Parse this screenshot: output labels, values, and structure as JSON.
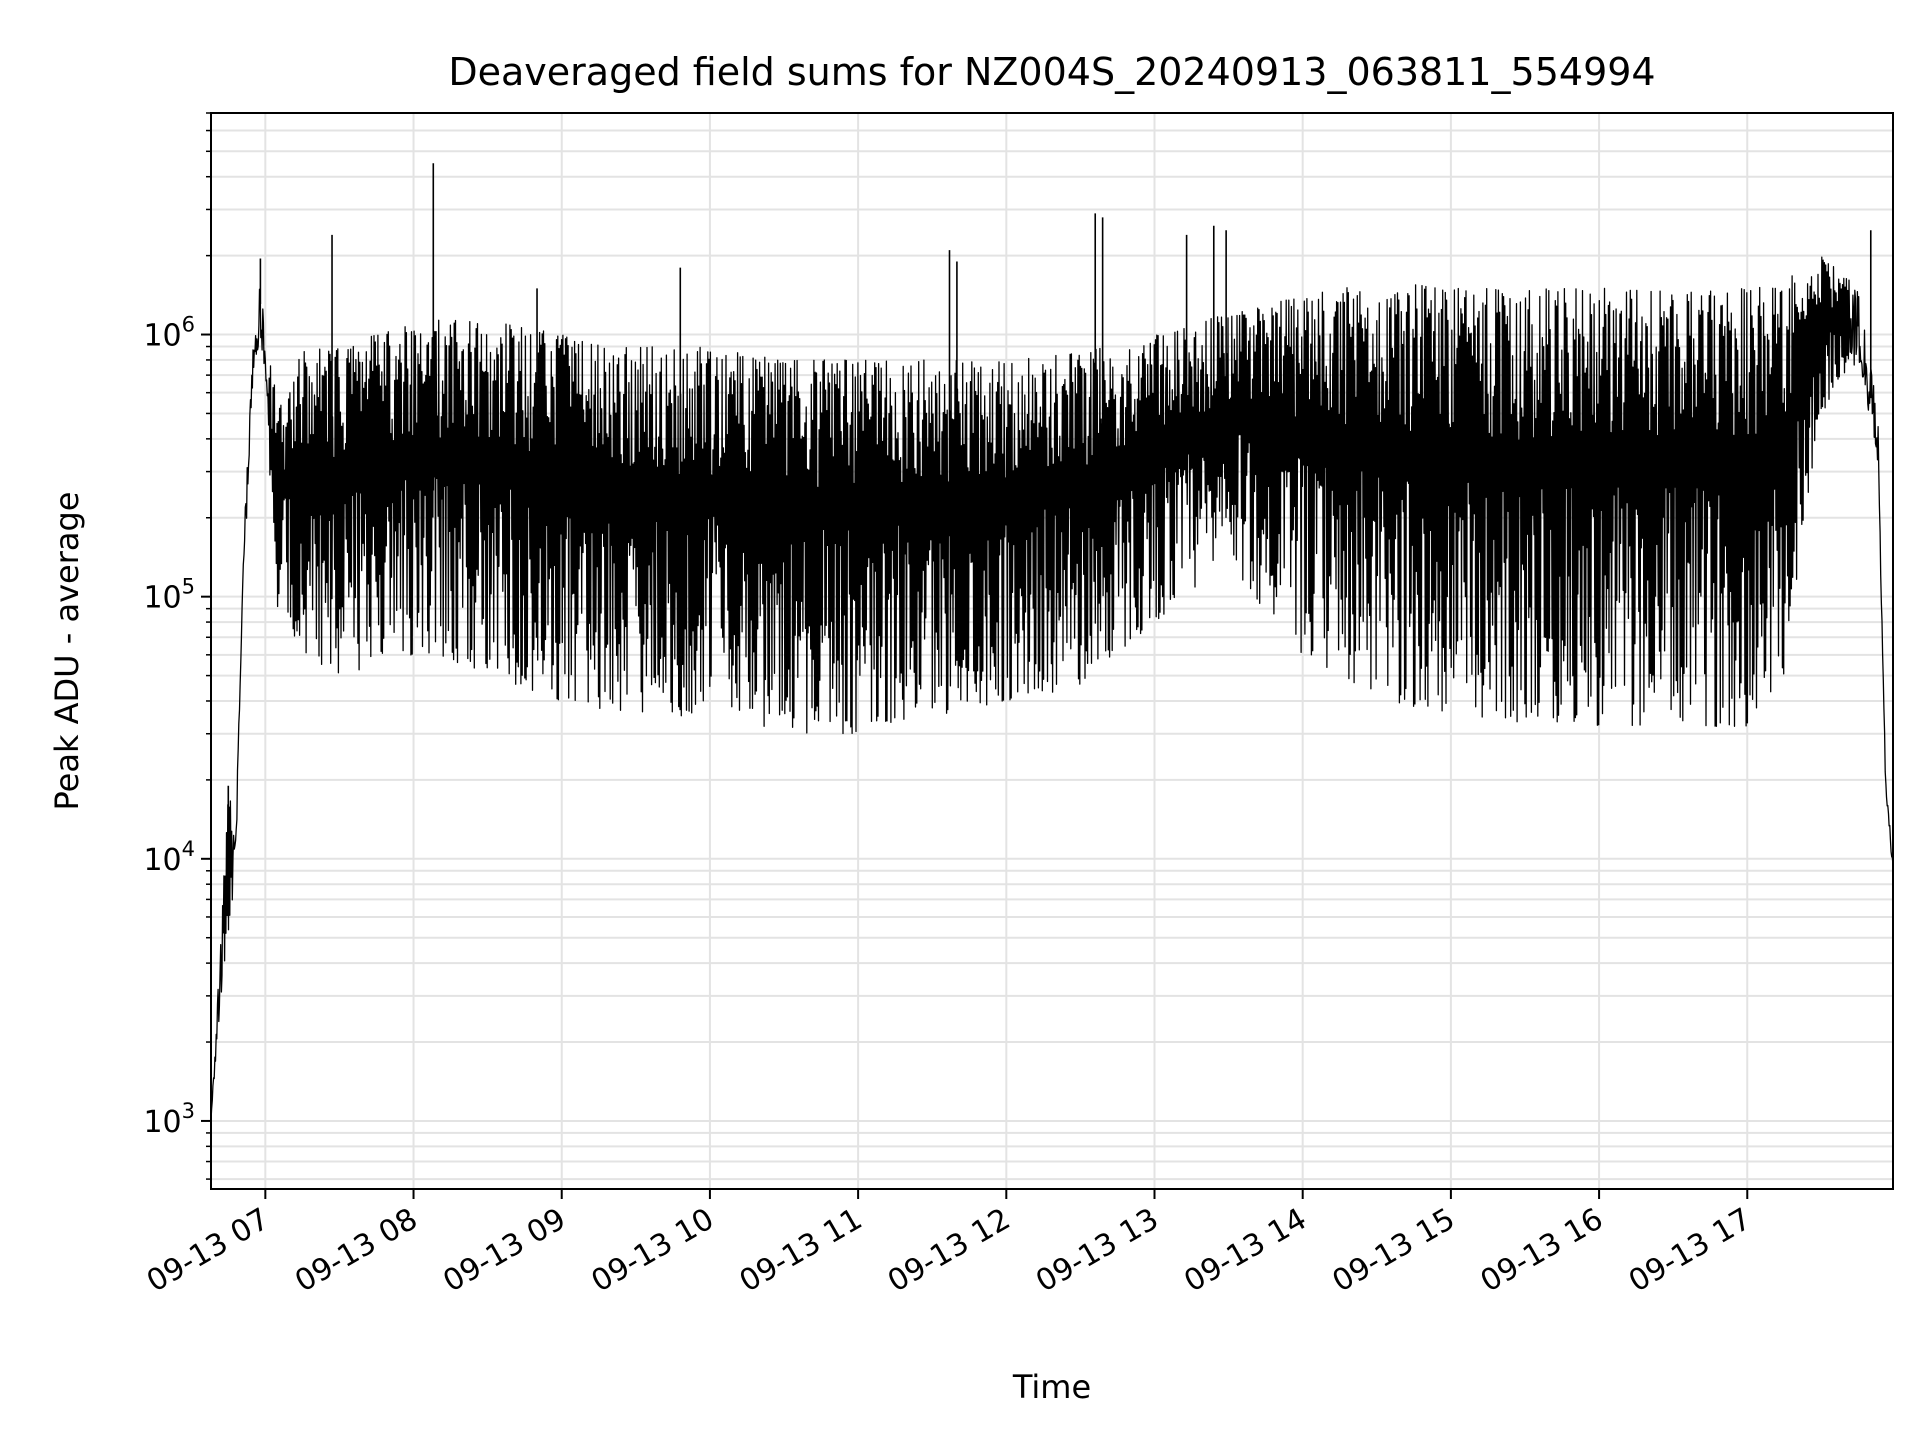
{
  "chart_data": {
    "type": "line",
    "title": "Deaveraged field sums for NZ004S_20240913_063811_554994",
    "xlabel": "Time",
    "ylabel": "Peak ADU - average",
    "yscale": "log",
    "ylim": [
      550,
      7000000
    ],
    "xlim": [
      "2024-09-13 06:38",
      "2024-09-13 17:59"
    ],
    "grid": true,
    "x_ticks": [
      {
        "label": "09-13 07",
        "value": "2024-09-13 07:00"
      },
      {
        "label": "09-13 08",
        "value": "2024-09-13 08:00"
      },
      {
        "label": "09-13 09",
        "value": "2024-09-13 09:00"
      },
      {
        "label": "09-13 10",
        "value": "2024-09-13 10:00"
      },
      {
        "label": "09-13 11",
        "value": "2024-09-13 11:00"
      },
      {
        "label": "09-13 12",
        "value": "2024-09-13 12:00"
      },
      {
        "label": "09-13 13",
        "value": "2024-09-13 13:00"
      },
      {
        "label": "09-13 14",
        "value": "2024-09-13 14:00"
      },
      {
        "label": "09-13 15",
        "value": "2024-09-13 15:00"
      },
      {
        "label": "09-13 16",
        "value": "2024-09-13 16:00"
      },
      {
        "label": "09-13 17",
        "value": "2024-09-13 17:00"
      }
    ],
    "y_ticks": [
      {
        "base": "10",
        "exp": "3",
        "value": 1000
      },
      {
        "base": "10",
        "exp": "4",
        "value": 10000
      },
      {
        "base": "10",
        "exp": "5",
        "value": 100000
      },
      {
        "base": "10",
        "exp": "6",
        "value": 1000000
      }
    ],
    "series_color": "#000000",
    "envelope": [
      {
        "t": "06:38",
        "low": 1000,
        "high": 1000
      },
      {
        "t": "06:42",
        "low": 3000,
        "high": 5000
      },
      {
        "t": "06:45",
        "low": 5000,
        "high": 19000
      },
      {
        "t": "06:48",
        "low": 9000,
        "high": 12000
      },
      {
        "t": "06:51",
        "low": 100000,
        "high": 150000
      },
      {
        "t": "06:55",
        "low": 700000,
        "high": 900000
      },
      {
        "t": "06:58",
        "low": 900000,
        "high": 1900000
      },
      {
        "t": "07:00",
        "low": 650000,
        "high": 800000
      },
      {
        "t": "07:02",
        "low": 180000,
        "high": 780000
      },
      {
        "t": "07:05",
        "low": 80000,
        "high": 550000
      },
      {
        "t": "07:15",
        "low": 60000,
        "high": 900000
      },
      {
        "t": "07:30",
        "low": 50000,
        "high": 900000
      },
      {
        "t": "07:45",
        "low": 55000,
        "high": 1000000
      },
      {
        "t": "08:00",
        "low": 60000,
        "high": 1100000
      },
      {
        "t": "08:15",
        "low": 55000,
        "high": 1150000
      },
      {
        "t": "08:30",
        "low": 50000,
        "high": 1100000
      },
      {
        "t": "08:45",
        "low": 45000,
        "high": 1100000
      },
      {
        "t": "09:00",
        "low": 40000,
        "high": 1000000
      },
      {
        "t": "09:30",
        "low": 35000,
        "high": 900000
      },
      {
        "t": "10:00",
        "low": 35000,
        "high": 900000
      },
      {
        "t": "10:30",
        "low": 30000,
        "high": 800000
      },
      {
        "t": "11:00",
        "low": 30000,
        "high": 800000
      },
      {
        "t": "11:30",
        "low": 35000,
        "high": 800000
      },
      {
        "t": "12:00",
        "low": 40000,
        "high": 800000
      },
      {
        "t": "12:30",
        "low": 45000,
        "high": 850000
      },
      {
        "t": "13:00",
        "low": 80000,
        "high": 1000000
      },
      {
        "t": "13:30",
        "low": 130000,
        "high": 1200000
      },
      {
        "t": "14:00",
        "low": 60000,
        "high": 1400000
      },
      {
        "t": "14:30",
        "low": 40000,
        "high": 1600000
      },
      {
        "t": "15:00",
        "low": 35000,
        "high": 1500000
      },
      {
        "t": "15:30",
        "low": 33000,
        "high": 1500000
      },
      {
        "t": "16:00",
        "low": 32000,
        "high": 1500000
      },
      {
        "t": "16:30",
        "low": 32000,
        "high": 1500000
      },
      {
        "t": "17:00",
        "low": 32000,
        "high": 1500000
      },
      {
        "t": "17:15",
        "low": 50000,
        "high": 1600000
      },
      {
        "t": "17:30",
        "low": 500000,
        "high": 2000000
      },
      {
        "t": "17:45",
        "low": 800000,
        "high": 1500000
      },
      {
        "t": "17:53",
        "low": 300000,
        "high": 500000
      },
      {
        "t": "17:56",
        "low": 18000,
        "high": 20000
      },
      {
        "t": "17:59",
        "low": 8500,
        "high": 10000
      }
    ],
    "spikes": [
      {
        "t": "06:45",
        "value": 19000
      },
      {
        "t": "06:58",
        "value": 1950000
      },
      {
        "t": "07:27",
        "value": 2400000
      },
      {
        "t": "08:08",
        "value": 4500000
      },
      {
        "t": "08:50",
        "value": 1500000
      },
      {
        "t": "09:48",
        "value": 1800000
      },
      {
        "t": "11:37",
        "value": 2100000
      },
      {
        "t": "11:40",
        "value": 1900000
      },
      {
        "t": "12:36",
        "value": 2900000
      },
      {
        "t": "12:39",
        "value": 2800000
      },
      {
        "t": "13:13",
        "value": 2400000
      },
      {
        "t": "13:24",
        "value": 2600000
      },
      {
        "t": "13:29",
        "value": 2500000
      },
      {
        "t": "17:50",
        "value": 2500000
      }
    ]
  }
}
